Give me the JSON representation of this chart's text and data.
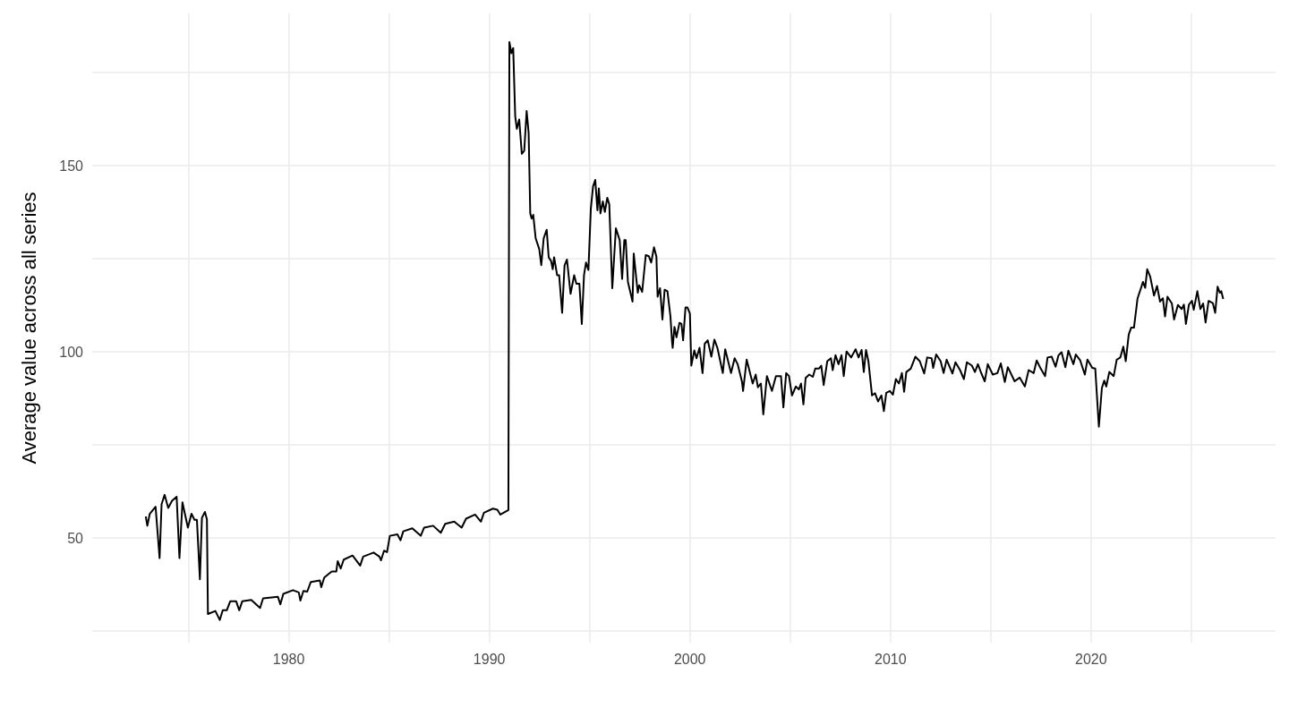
{
  "chart_data": {
    "type": "line",
    "ylabel": "Average value across all series",
    "grid": true,
    "marker": "none",
    "line_style": "solid",
    "xlim": [
      1970.2,
      2029.2
    ],
    "ylim": [
      21.9,
      190.9
    ],
    "xticks": [
      {
        "value": 1975,
        "label": null
      },
      1980,
      {
        "value": 1985,
        "label": null
      },
      1990,
      {
        "value": 1995,
        "label": null
      },
      2000,
      {
        "value": 2005,
        "label": null
      },
      2010,
      {
        "value": 2015,
        "label": null
      },
      2020,
      {
        "value": 2025,
        "label": null
      }
    ],
    "yticks": [
      {
        "value": 25,
        "label": null
      },
      50,
      {
        "value": 75,
        "label": null
      },
      100,
      {
        "value": 125,
        "label": null
      },
      150,
      {
        "value": 175,
        "label": null
      }
    ],
    "series": [
      {
        "color": "#000000",
        "x": [
          1972.87,
          1972.95,
          1973.07,
          1973.36,
          1973.56,
          1973.66,
          1973.81,
          1973.99,
          1974.18,
          1974.41,
          1974.55,
          1974.7,
          1974.97,
          1975.15,
          1975.3,
          1975.42,
          1975.57,
          1975.67,
          1975.82,
          1975.92,
          1975.97,
          1976.34,
          1976.56,
          1976.71,
          1976.91,
          1977.08,
          1977.38,
          1977.53,
          1977.68,
          1978.13,
          1978.57,
          1978.72,
          1979.46,
          1979.58,
          1979.73,
          1980.21,
          1980.5,
          1980.58,
          1980.73,
          1980.92,
          1981.1,
          1981.55,
          1981.62,
          1981.77,
          1982.14,
          1982.37,
          1982.44,
          1982.59,
          1982.74,
          1983.18,
          1983.56,
          1983.71,
          1984.23,
          1984.52,
          1984.6,
          1984.75,
          1984.9,
          1985.04,
          1985.42,
          1985.57,
          1985.71,
          1986.16,
          1986.58,
          1986.75,
          1987.2,
          1987.58,
          1987.8,
          1988.25,
          1988.62,
          1988.84,
          1989.29,
          1989.58,
          1989.73,
          1990.18,
          1990.4,
          1990.55,
          1990.95,
          1991.0,
          1991.1,
          1991.19,
          1991.29,
          1991.37,
          1991.49,
          1991.62,
          1991.74,
          1991.86,
          1991.96,
          1992.04,
          1992.11,
          1992.19,
          1992.31,
          1992.49,
          1992.59,
          1992.71,
          1992.86,
          1992.96,
          1993.08,
          1993.16,
          1993.23,
          1993.38,
          1993.48,
          1993.63,
          1993.75,
          1993.87,
          1994.05,
          1994.23,
          1994.34,
          1994.49,
          1994.61,
          1994.72,
          1994.82,
          1994.94,
          1995.06,
          1995.17,
          1995.28,
          1995.39,
          1995.46,
          1995.54,
          1995.66,
          1995.76,
          1995.88,
          1995.98,
          1996.13,
          1996.31,
          1996.5,
          1996.62,
          1996.73,
          1996.8,
          1996.91,
          1997.14,
          1997.2,
          1997.4,
          1997.47,
          1997.62,
          1997.8,
          1997.95,
          1998.07,
          1998.21,
          1998.33,
          1998.39,
          1998.51,
          1998.63,
          1998.74,
          1998.88,
          1999.03,
          1999.11,
          1999.14,
          1999.23,
          1999.33,
          1999.48,
          1999.58,
          1999.66,
          1999.78,
          1999.88,
          2000.0,
          2000.07,
          2000.22,
          2000.33,
          2000.48,
          2000.63,
          2000.74,
          2000.89,
          2001.07,
          2001.22,
          2001.37,
          2001.64,
          2001.76,
          2002.05,
          2002.23,
          2002.38,
          2002.6,
          2002.65,
          2002.83,
          2003.13,
          2003.28,
          2003.39,
          2003.54,
          2003.66,
          2003.84,
          2004.09,
          2004.29,
          2004.54,
          2004.66,
          2004.8,
          2004.94,
          2005.09,
          2005.28,
          2005.43,
          2005.54,
          2005.66,
          2005.77,
          2005.95,
          2006.13,
          2006.25,
          2006.43,
          2006.55,
          2006.67,
          2006.85,
          2007.03,
          2007.12,
          2007.26,
          2007.41,
          2007.56,
          2007.67,
          2007.81,
          2008.04,
          2008.26,
          2008.41,
          2008.56,
          2008.67,
          2008.78,
          2008.9,
          2009.08,
          2009.23,
          2009.38,
          2009.55,
          2009.67,
          2009.79,
          2009.97,
          2010.12,
          2010.27,
          2010.42,
          2010.57,
          2010.68,
          2010.79,
          2011.01,
          2011.24,
          2011.46,
          2011.68,
          2011.83,
          2012.05,
          2012.13,
          2012.28,
          2012.5,
          2012.65,
          2012.8,
          2013.09,
          2013.24,
          2013.47,
          2013.66,
          2013.81,
          2014.06,
          2014.21,
          2014.36,
          2014.51,
          2014.7,
          2014.85,
          2015.1,
          2015.33,
          2015.5,
          2015.7,
          2015.85,
          2016.19,
          2016.44,
          2016.7,
          2016.89,
          2017.14,
          2017.29,
          2017.49,
          2017.71,
          2017.83,
          2018.04,
          2018.23,
          2018.38,
          2018.53,
          2018.72,
          2018.87,
          2019.12,
          2019.24,
          2019.46,
          2019.69,
          2019.82,
          2020.06,
          2020.21,
          2020.39,
          2020.54,
          2020.66,
          2020.76,
          2020.91,
          2021.13,
          2021.28,
          2021.46,
          2021.61,
          2021.73,
          2021.88,
          2022.0,
          2022.14,
          2022.32,
          2022.47,
          2022.59,
          2022.7,
          2022.8,
          2022.95,
          2023.14,
          2023.29,
          2023.44,
          2023.58,
          2023.69,
          2023.81,
          2024.03,
          2024.14,
          2024.33,
          2024.52,
          2024.63,
          2024.73,
          2024.88,
          2025.03,
          2025.12,
          2025.3,
          2025.45,
          2025.59,
          2025.71,
          2025.86,
          2026.07,
          2026.19,
          2026.31,
          2026.42,
          2026.49,
          2026.59
        ],
        "values": [
          55.8,
          53.3,
          56.5,
          58.4,
          44.6,
          59.1,
          61.6,
          58.1,
          60.0,
          61.1,
          44.6,
          59.6,
          52.8,
          56.5,
          54.9,
          54.9,
          38.9,
          55.4,
          57.0,
          55.0,
          29.6,
          30.4,
          28.0,
          30.6,
          30.6,
          33.0,
          33.0,
          30.6,
          33.0,
          33.4,
          31.2,
          33.8,
          34.2,
          32.2,
          35.0,
          36.0,
          35.4,
          33.2,
          35.8,
          35.6,
          38.2,
          38.6,
          36.8,
          39.4,
          41.0,
          41.0,
          43.8,
          41.8,
          44.2,
          45.3,
          42.6,
          45.0,
          46.1,
          45.0,
          44.0,
          46.6,
          46.2,
          50.6,
          51.0,
          49.4,
          51.8,
          52.6,
          50.6,
          52.8,
          53.3,
          51.4,
          53.8,
          54.4,
          52.8,
          55.2,
          56.3,
          54.4,
          56.8,
          57.9,
          57.6,
          56.3,
          57.5,
          183.2,
          180.2,
          181.6,
          163.3,
          159.9,
          162.4,
          153.2,
          154.0,
          164.7,
          158.8,
          137.2,
          135.8,
          136.8,
          130.5,
          127.6,
          123.3,
          130.5,
          132.8,
          125.4,
          124.4,
          122.2,
          125.4,
          120.6,
          120.6,
          110.5,
          123.2,
          124.8,
          115.6,
          120.6,
          118.3,
          118.3,
          107.5,
          120.6,
          124.0,
          122.0,
          138.4,
          144.4,
          146.2,
          138.0,
          143.9,
          137.2,
          140.4,
          137.6,
          141.4,
          139.6,
          117.1,
          133.2,
          130.0,
          119.6,
          130.0,
          130.0,
          118.8,
          113.5,
          126.4,
          115.9,
          117.9,
          116.1,
          126.0,
          125.7,
          124.0,
          128.1,
          125.6,
          114.8,
          117.1,
          108.7,
          116.7,
          116.3,
          109.5,
          102.7,
          101.1,
          106.7,
          103.9,
          107.8,
          107.5,
          103.1,
          111.9,
          111.9,
          110.3,
          96.3,
          100.4,
          98.3,
          101.1,
          94.3,
          102.2,
          103.1,
          98.7,
          103.3,
          101.1,
          94.3,
          100.7,
          94.3,
          98.3,
          96.7,
          91.9,
          89.5,
          97.9,
          91.5,
          93.9,
          90.5,
          91.5,
          83.2,
          93.5,
          89.5,
          93.5,
          93.5,
          85.1,
          94.3,
          93.5,
          88.3,
          90.7,
          89.9,
          91.5,
          85.9,
          93.0,
          93.9,
          93.3,
          95.5,
          95.5,
          96.3,
          91.1,
          97.5,
          98.3,
          95.1,
          99.1,
          96.7,
          99.1,
          93.5,
          100.1,
          98.5,
          100.7,
          98.5,
          100.5,
          94.6,
          100.5,
          97.5,
          88.3,
          88.9,
          86.7,
          88.3,
          84.1,
          89.0,
          89.5,
          88.5,
          92.7,
          91.5,
          94.3,
          89.3,
          94.6,
          95.5,
          98.7,
          97.5,
          94.2,
          98.5,
          98.3,
          95.7,
          99.3,
          97.5,
          94.3,
          97.9,
          94.2,
          97.2,
          95.1,
          92.7,
          97.2,
          96.3,
          94.6,
          96.7,
          94.5,
          92.1,
          96.7,
          93.9,
          94.3,
          96.9,
          91.9,
          95.9,
          92.1,
          93.1,
          90.7,
          95.1,
          94.3,
          97.7,
          95.5,
          93.5,
          98.5,
          98.7,
          96.0,
          99.1,
          99.9,
          95.9,
          100.3,
          96.7,
          99.3,
          97.7,
          93.9,
          97.9,
          95.7,
          95.5,
          79.9,
          90.3,
          92.3,
          90.7,
          94.6,
          93.5,
          97.9,
          98.5,
          101.4,
          97.5,
          104.7,
          106.5,
          106.5,
          114.4,
          116.8,
          118.8,
          117.2,
          122.2,
          120.2,
          115.1,
          117.7,
          113.5,
          114.4,
          109.5,
          114.8,
          113.0,
          108.7,
          112.6,
          111.5,
          112.7,
          107.5,
          112.7,
          113.7,
          111.3,
          116.3,
          111.5,
          113.0,
          107.9,
          113.7,
          113.1,
          110.5,
          117.5,
          115.9,
          116.3,
          114.2
        ]
      }
    ]
  }
}
